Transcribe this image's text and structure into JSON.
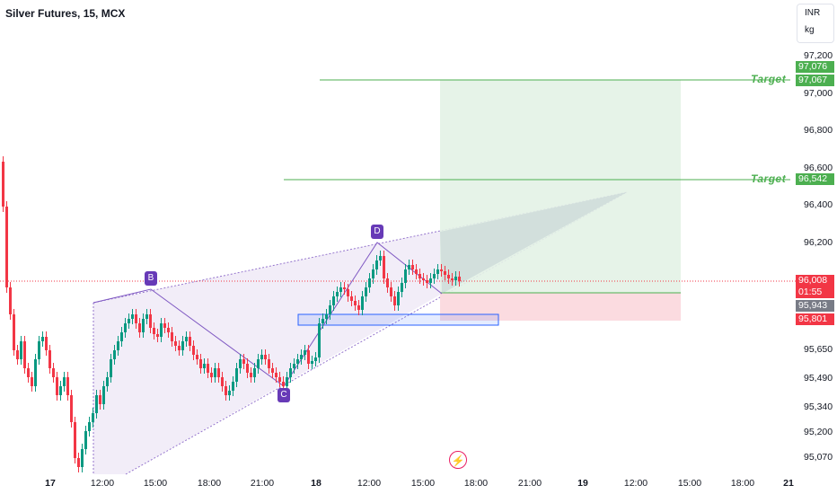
{
  "title": "Silver Futures, 15, MCX",
  "currency": "INR",
  "unit": "kg",
  "price_axis": [
    "97,200",
    "97,000",
    "96,800",
    "96,600",
    "96,400",
    "96,200",
    "95,650",
    "95,490",
    "95,340",
    "95,200",
    "95,070"
  ],
  "time_axis": [
    {
      "label": "17",
      "bold": true
    },
    {
      "label": "12:00",
      "bold": false
    },
    {
      "label": "15:00",
      "bold": false
    },
    {
      "label": "18:00",
      "bold": false
    },
    {
      "label": "21:00",
      "bold": false
    },
    {
      "label": "18",
      "bold": true
    },
    {
      "label": "12:00",
      "bold": false
    },
    {
      "label": "15:00",
      "bold": false
    },
    {
      "label": "18:00",
      "bold": false
    },
    {
      "label": "21:00",
      "bold": false
    },
    {
      "label": "19",
      "bold": true
    },
    {
      "label": "12:00",
      "bold": false
    },
    {
      "label": "15:00",
      "bold": false
    },
    {
      "label": "18:00",
      "bold": false
    },
    {
      "label": "21",
      "bold": true
    }
  ],
  "badges": {
    "target1_a": {
      "text": "97,076",
      "color": "#4caf50"
    },
    "target1_b": {
      "text": "97,067",
      "color": "#4caf50"
    },
    "target2": {
      "text": "96,542",
      "color": "#4caf50"
    },
    "last_price": {
      "text": "96,008",
      "color": "#f23645"
    },
    "countdown": {
      "text": "01:55",
      "color": "#f23645"
    },
    "entry": {
      "text": "95,943",
      "color": "#787b86"
    },
    "stop": {
      "text": "95,801",
      "color": "#f23645"
    }
  },
  "targets": {
    "label1": "Target",
    "label2": "Target"
  },
  "pattern_points": {
    "b": "B",
    "c": "C",
    "d": "D"
  },
  "colors": {
    "up": "#089981",
    "down": "#f23645",
    "pattern_fill": "#ede7f6",
    "target_line": "#4caf50",
    "zone_blue": "#2962ff"
  },
  "icons": {
    "lightning": "lightning-icon"
  }
}
